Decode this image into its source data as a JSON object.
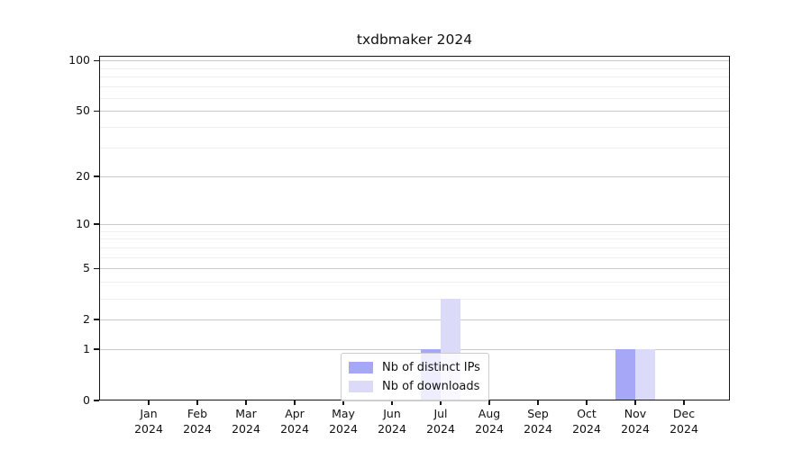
{
  "title": "txdbmaker 2024",
  "colors": {
    "axis": "#151515",
    "grid_major": "#c9c9c9",
    "grid_minor": "#efefef",
    "background": "#ffffff",
    "series_distinct_ips": "#a7a7f7",
    "series_downloads": "#dbdbf9"
  },
  "legend": {
    "items": [
      {
        "label": "Nb of distinct IPs"
      },
      {
        "label": "Nb of downloads"
      }
    ]
  },
  "chart_data": {
    "type": "bar",
    "title": "txdbmaker 2024",
    "categories": [
      "Jan",
      "Feb",
      "Mar",
      "Apr",
      "May",
      "Jun",
      "Jul",
      "Aug",
      "Sep",
      "Oct",
      "Nov",
      "Dec"
    ],
    "year": "2024",
    "series": [
      {
        "name": "Nb of distinct IPs",
        "color": "#a7a7f7",
        "values": [
          0,
          0,
          0,
          0,
          0,
          0,
          1,
          0,
          0,
          0,
          1,
          0
        ]
      },
      {
        "name": "Nb of downloads",
        "color": "#dbdbf9",
        "values": [
          0,
          0,
          0,
          0,
          0,
          0,
          3,
          0,
          0,
          0,
          1,
          0
        ]
      }
    ],
    "yscale": "log1p",
    "ylim": [
      0,
      100
    ],
    "yticks": [
      0,
      1,
      2,
      5,
      10,
      20,
      50,
      100
    ],
    "minor_gridlines": [
      3,
      4,
      6,
      7,
      8,
      9,
      30,
      40,
      60,
      70,
      80,
      90
    ],
    "xlabel": "",
    "ylabel": "",
    "grid": true,
    "legend_position": "lower center inside plot"
  }
}
